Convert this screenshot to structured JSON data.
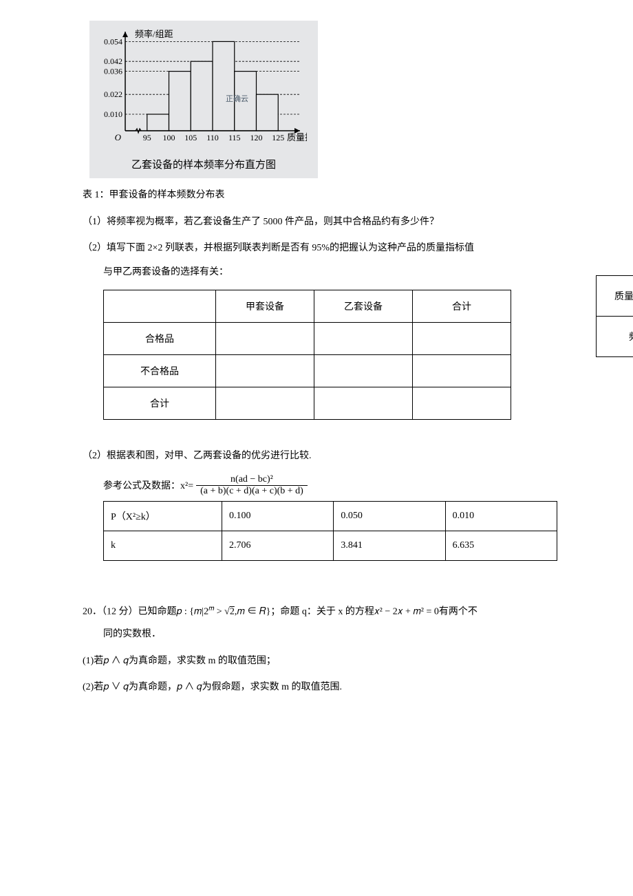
{
  "histogram": {
    "y_label": "频率/组距",
    "x_label_right": "质量指标数",
    "origin": "O",
    "watermark": "正确云",
    "x_ticks": [
      "95",
      "100",
      "105",
      "110",
      "115",
      "120",
      "125"
    ],
    "y_ticks": [
      "0.010",
      "0.022",
      "0.036",
      "0.042",
      "0.054"
    ],
    "bars": [
      {
        "x0": 95,
        "x1": 100,
        "h": 0.01,
        "fill": "#e5e6e8",
        "stroke": "#000000"
      },
      {
        "x0": 100,
        "x1": 105,
        "h": 0.036,
        "fill": "#e5e6e8",
        "stroke": "#000000"
      },
      {
        "x0": 105,
        "x1": 110,
        "h": 0.042,
        "fill": "#e5e6e8",
        "stroke": "#000000"
      },
      {
        "x0": 110,
        "x1": 115,
        "h": 0.054,
        "fill": "#e5e6e8",
        "stroke": "#000000"
      },
      {
        "x0": 115,
        "x1": 120,
        "h": 0.036,
        "fill": "#e5e6e8",
        "stroke": "#000000"
      },
      {
        "x0": 120,
        "x1": 125,
        "h": 0.022,
        "fill": "#e5e6e8",
        "stroke": "#000000"
      }
    ],
    "x_domain": [
      90,
      130
    ],
    "y_domain": [
      0,
      0.06
    ],
    "caption": "乙套设备的样本频率分布直方图",
    "axis_color": "#000000",
    "background": "#e5e6e8",
    "tick_font_size": 12,
    "label_font_family": "KaiTi"
  },
  "text": {
    "table1_label": "表 1：甲套设备的样本频数分布表",
    "q1": "（1）将频率视为概率，若乙套设备生产了 5000 件产品，则其中合格品约有多少件？",
    "q2a": "（2）填写下面 2×2 列联表，并根据列联表判断是否有 95%的把握认为这种产品的质量指标值",
    "q2b": "与甲乙两套设备的选择有关：",
    "q2_after": "（2）根据表和图，对甲、乙两套设备的优劣进行比较.",
    "formula_prefix": "参考公式及数据：x²=",
    "formula_num": "n(ad − bc)²",
    "formula_den": "(a + b)(c + d)(a + c)(b + d)"
  },
  "side_table": {
    "r1": "质量指标值",
    "r2": "频数"
  },
  "contingency": {
    "headers": [
      "",
      "甲套设备",
      "乙套设备",
      "合计"
    ],
    "rows": [
      "合格品",
      "不合格品",
      "合计"
    ]
  },
  "chi_table": {
    "r1": [
      "P（X²≥k）",
      "0.100",
      "0.050",
      "0.010"
    ],
    "r2": [
      "k",
      "2.706",
      "3.841",
      "6.635"
    ]
  },
  "q20": {
    "stem_a": "20．（12 分）已知命题𝑝 : {𝑚|2",
    "stem_exp": "𝑚",
    "stem_b": " > ",
    "stem_sqrt": "2",
    "stem_c": ",𝑚 ∈ 𝑅}；命题 q：关于 x 的方程𝑥² − 2𝑥 + 𝑚² = 0有两个不",
    "stem_d": "同的实数根．",
    "p1": "(1)若𝑝 ∧ 𝑞为真命题，求实数 m 的取值范围；",
    "p2": "(2)若𝑝 ∨ 𝑞为真命题，𝑝 ∧ 𝑞为假命题，求实数 m 的取值范围."
  }
}
